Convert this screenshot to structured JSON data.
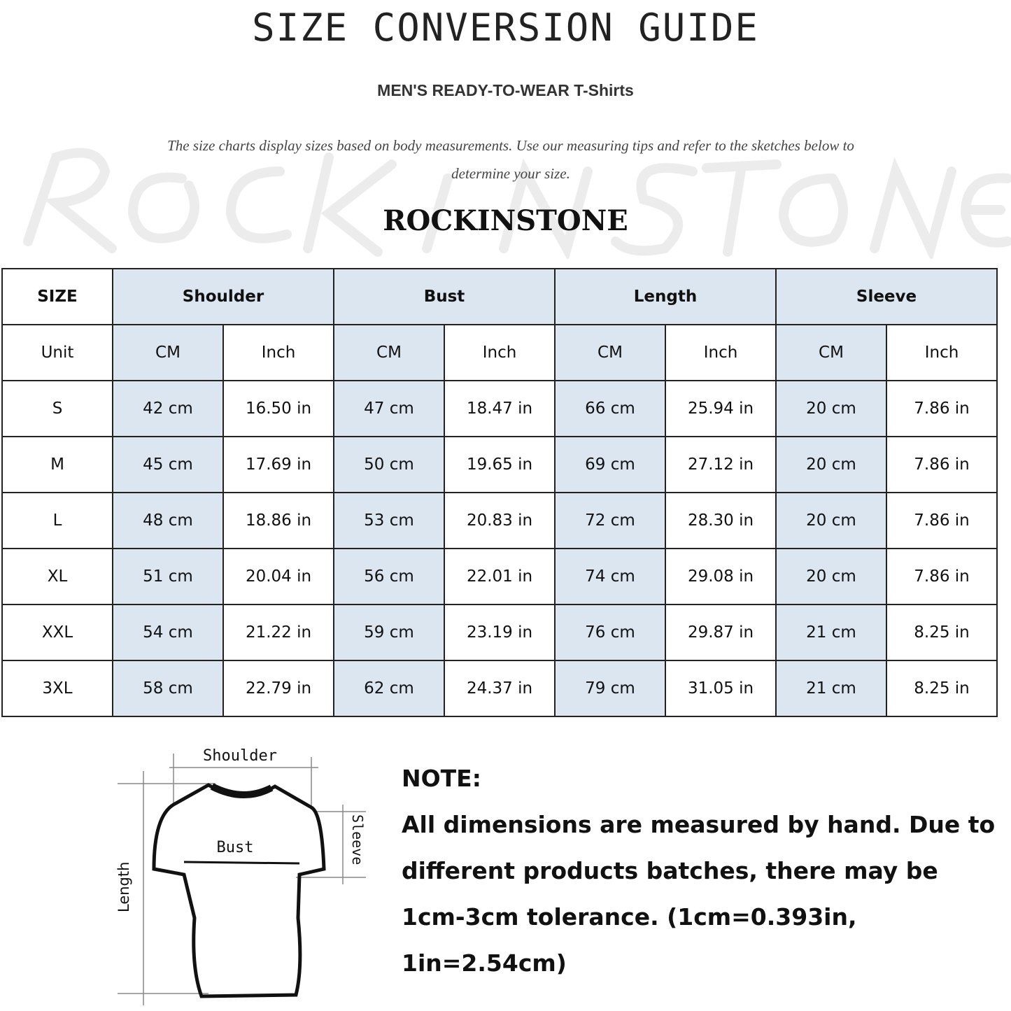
{
  "title": "SIZE CONVERSION GUIDE",
  "subtitle": "MEN'S READY-TO-WEAR T-Shirts",
  "description": "The size charts display sizes based on body measurements. Use our measuring tips and refer to the sketches below to determine your size.",
  "watermark": "ROCKINSTONE",
  "brand": "ROCKINSTONE",
  "table": {
    "size_header": "SIZE",
    "unit_label": "Unit",
    "groups": [
      "Shoulder",
      "Bust",
      "Length",
      "Sleeve"
    ],
    "cm_label": "CM",
    "inch_label": "Inch",
    "rows": [
      {
        "size": "S",
        "values": [
          "42 cm",
          "16.50 in",
          "47 cm",
          "18.47  in",
          "66 cm",
          "25.94  in",
          "20 cm",
          "7.86  in"
        ]
      },
      {
        "size": "M",
        "values": [
          "45 cm",
          "17.69  in",
          "50 cm",
          "19.65  in",
          "69 cm",
          "27.12  in",
          "20 cm",
          "7.86  in"
        ]
      },
      {
        "size": "L",
        "values": [
          "48 cm",
          "18.86  in",
          "53 cm",
          "20.83  in",
          "72 cm",
          "28.30  in",
          "20 cm",
          "7.86  in"
        ]
      },
      {
        "size": "XL",
        "values": [
          "51 cm",
          "20.04  in",
          "56 cm",
          "22.01  in",
          "74 cm",
          "29.08  in",
          "20 cm",
          "7.86  in"
        ]
      },
      {
        "size": "XXL",
        "values": [
          "54 cm",
          "21.22  in",
          "59 cm",
          "23.19  in",
          "76 cm",
          "29.87  in",
          "21 cm",
          "8.25  in"
        ]
      },
      {
        "size": "3XL",
        "values": [
          "58 cm",
          "22.79  in",
          "62 cm",
          "24.37  in",
          "79 cm",
          "31.05  in",
          "21 cm",
          "8.25  in"
        ]
      }
    ],
    "header_fill": "#dce6f1"
  },
  "diagram": {
    "shoulder": "Shoulder",
    "bust": "Bust",
    "sleeve": "Sleeve",
    "length": "Length"
  },
  "note": {
    "heading": "NOTE:",
    "body": "All dimensions are measured by hand. Due to different products batches, there may be 1cm-3cm tolerance. (1cm=0.393in, 1in=2.54cm)"
  }
}
